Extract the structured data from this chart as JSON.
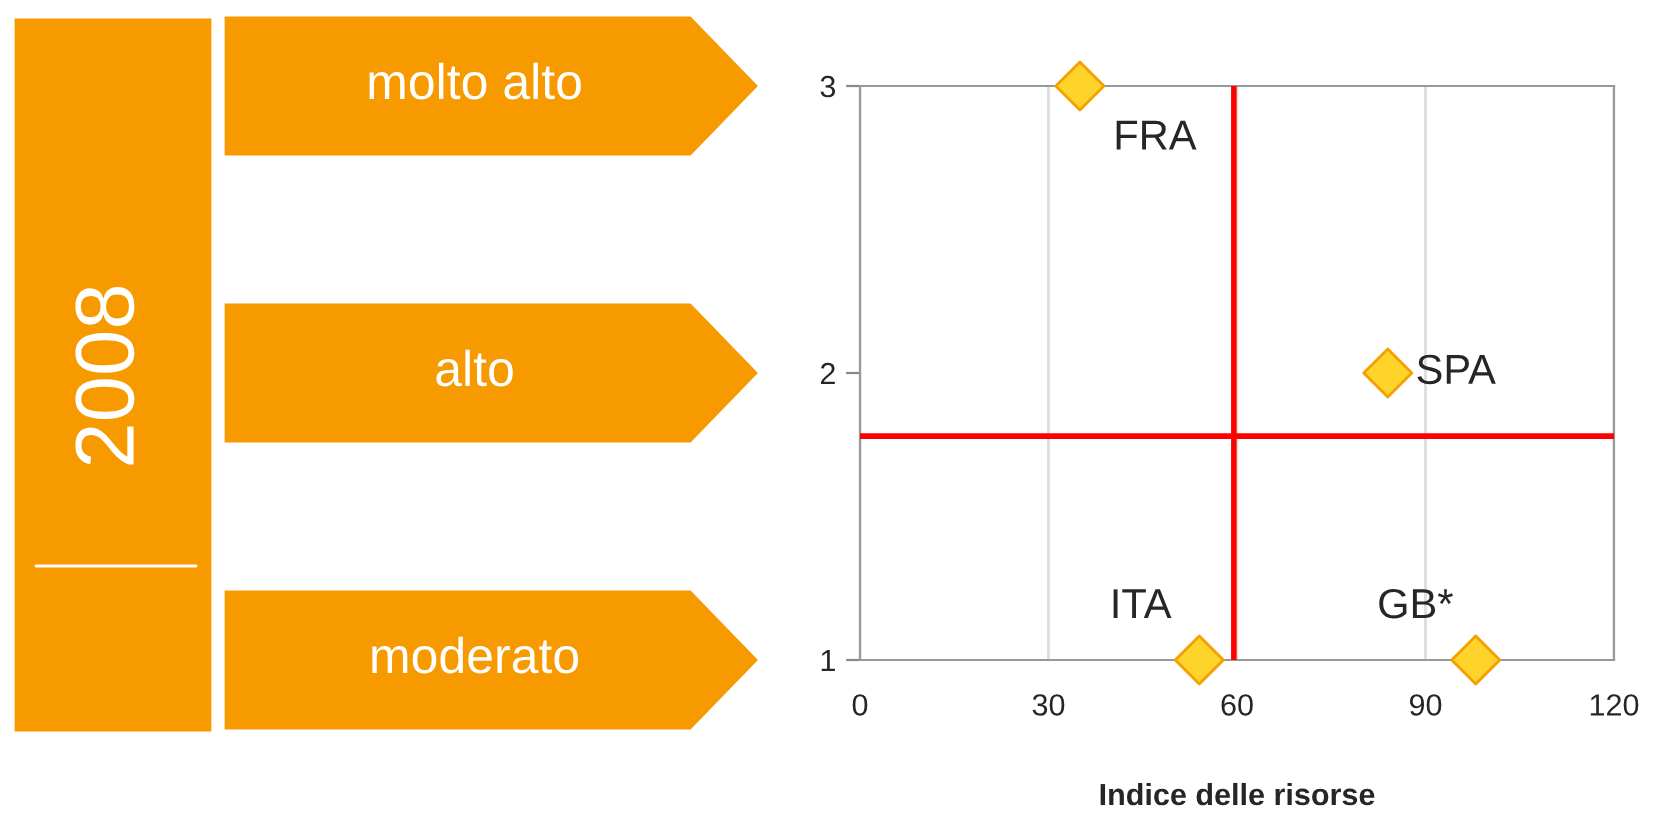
{
  "chart_data": {
    "type": "scatter",
    "xlabel": "Indice delle risorse",
    "x": [
      35,
      84,
      54,
      98
    ],
    "series": [
      {
        "color": "#ffd42a",
        "values": [
          3,
          2,
          1,
          1
        ]
      }
    ],
    "marker": "diamond",
    "xlim": [
      0,
      120
    ],
    "xticks": [
      0,
      30,
      60,
      90,
      120
    ],
    "ylim": [
      1,
      3
    ],
    "yticks": [
      1,
      2,
      3
    ],
    "grid": "x",
    "ref_lines": [
      {
        "axis": "x",
        "value": 59.5,
        "color": "#ff0000"
      },
      {
        "axis": "y",
        "value": 1.78,
        "color": "#ff0000"
      }
    ],
    "annotations": [
      {
        "text": "FRA",
        "x": 35,
        "y": 3
      },
      {
        "text": "SPA",
        "x": 84,
        "y": 2
      },
      {
        "text": "ITA",
        "x": 54,
        "y": 1
      },
      {
        "text": "GB*",
        "x": 98,
        "y": 1
      },
      "2008",
      "molto alto",
      "alto",
      "moderato"
    ]
  }
}
